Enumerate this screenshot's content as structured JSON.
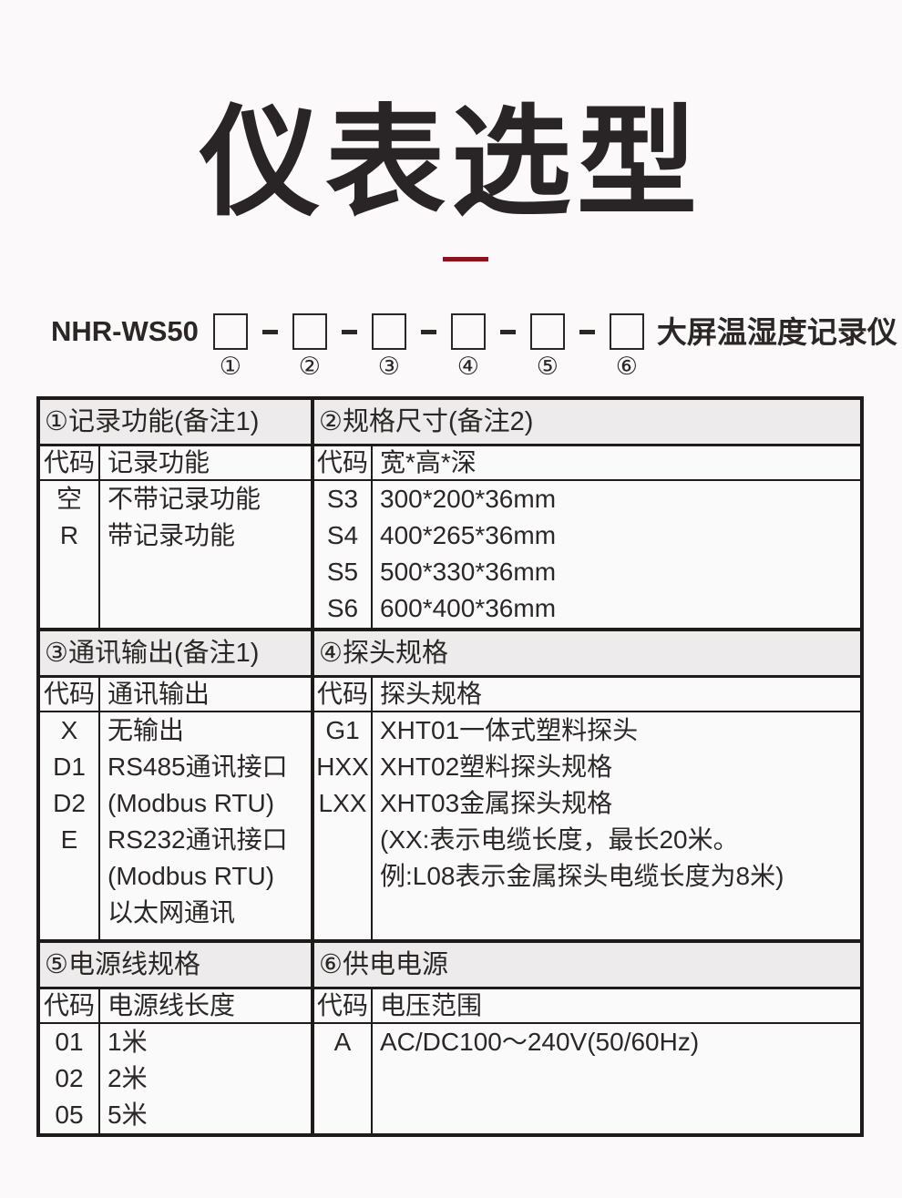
{
  "page": {
    "title": "仪表选型"
  },
  "model": {
    "prefix": "NHR-WS50",
    "suffix": "大屏温湿度记录仪",
    "positions": [
      "①",
      "②",
      "③",
      "④",
      "⑤",
      "⑥"
    ]
  },
  "colors": {
    "accent_red": "#8c1317",
    "border_black": "#1f1b1b",
    "header_gray": "#edebeb"
  },
  "sections": [
    {
      "left": {
        "title": "①记录功能(备注1)",
        "col_code": "代码",
        "col_desc": "记录功能",
        "rows": [
          [
            "空",
            "不带记录功能"
          ],
          [
            "R",
            "带记录功能"
          ]
        ]
      },
      "right": {
        "title": "②规格尺寸(备注2)",
        "col_code": "代码",
        "col_desc": "宽*高*深",
        "rows": [
          [
            "S3",
            "300*200*36mm"
          ],
          [
            "S4",
            "400*265*36mm"
          ],
          [
            "S5",
            "500*330*36mm"
          ],
          [
            "S6",
            "600*400*36mm"
          ]
        ]
      }
    },
    {
      "left": {
        "title": "③通讯输出(备注1)",
        "col_code": "代码",
        "col_desc": "通讯输出",
        "rows": [
          [
            "X",
            "无输出"
          ],
          [
            "D1",
            "RS485通讯接口"
          ],
          [
            "",
            "(Modbus RTU)"
          ],
          [
            "D2",
            "RS232通讯接口"
          ],
          [
            "",
            "(Modbus RTU)"
          ],
          [
            "E",
            "以太网通讯"
          ]
        ]
      },
      "right": {
        "title": "④探头规格",
        "col_code": "代码",
        "col_desc": "探头规格",
        "rows": [
          [
            "G1",
            "XHT01一体式塑料探头"
          ],
          [
            "HXX",
            "XHT02塑料探头规格"
          ],
          [
            "LXX",
            "XHT03金属探头规格"
          ],
          [
            "",
            "(XX:表示电缆长度，最长20米。"
          ],
          [
            "",
            "例:L08表示金属探头电缆长度为8米)"
          ]
        ]
      }
    },
    {
      "left": {
        "title": "⑤电源线规格",
        "col_code": "代码",
        "col_desc": "电源线长度",
        "rows": [
          [
            "01",
            "1米"
          ],
          [
            "02",
            "2米"
          ],
          [
            "05",
            "5米"
          ]
        ]
      },
      "right": {
        "title": "⑥供电电源",
        "col_code": "代码",
        "col_desc": "电压范围",
        "rows": [
          [
            "A",
            "AC/DC100～240V(50/60Hz)"
          ]
        ]
      }
    }
  ]
}
